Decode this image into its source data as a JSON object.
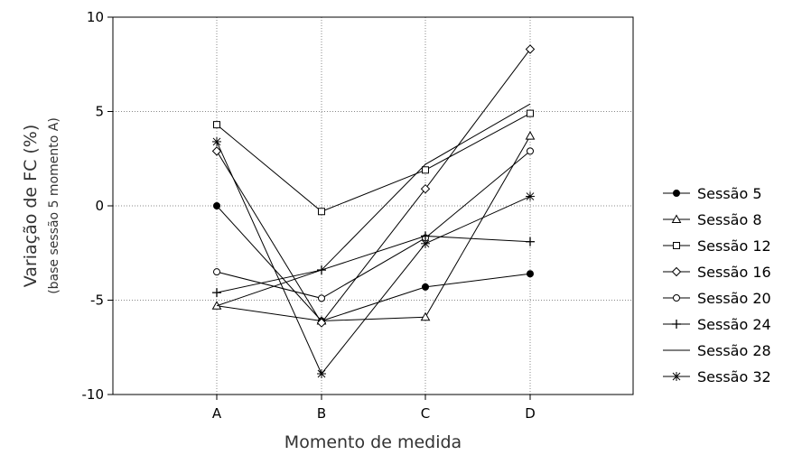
{
  "chart_data": {
    "type": "line",
    "categories": [
      "A",
      "B",
      "C",
      "D"
    ],
    "ylabel": "Variação de FC (%)",
    "ylabel_sub": "(base sessão 5 momento A)",
    "xlabel": "Momento de medida",
    "ylim": [
      -10,
      10
    ],
    "yticks": [
      10,
      5,
      0,
      -5,
      -10
    ],
    "grid": "dotted",
    "legend_position": "right",
    "series": [
      {
        "name": "Sessão 5",
        "marker": "filled-circle",
        "values": [
          0.0,
          -6.1,
          -4.3,
          -3.6
        ]
      },
      {
        "name": "Sessão 8",
        "marker": "open-triangle",
        "values": [
          -5.3,
          -6.1,
          -5.9,
          3.7
        ]
      },
      {
        "name": "Sessão 12",
        "marker": "open-square",
        "values": [
          4.3,
          -0.3,
          1.9,
          4.9
        ]
      },
      {
        "name": "Sessão 16",
        "marker": "open-diamond",
        "values": [
          2.9,
          -6.2,
          0.9,
          8.3
        ]
      },
      {
        "name": "Sessão 20",
        "marker": "open-circle",
        "values": [
          -3.5,
          -4.9,
          -1.7,
          2.9
        ]
      },
      {
        "name": "Sessão 24",
        "marker": "plus",
        "values": [
          -4.6,
          -3.4,
          -1.6,
          -1.9
        ]
      },
      {
        "name": "Sessão 28",
        "marker": "none",
        "values": [
          -5.3,
          -3.4,
          2.2,
          5.4
        ]
      },
      {
        "name": "Sessão 32",
        "marker": "asterisk",
        "values": [
          3.4,
          -8.9,
          -2.0,
          0.5
        ]
      }
    ]
  }
}
